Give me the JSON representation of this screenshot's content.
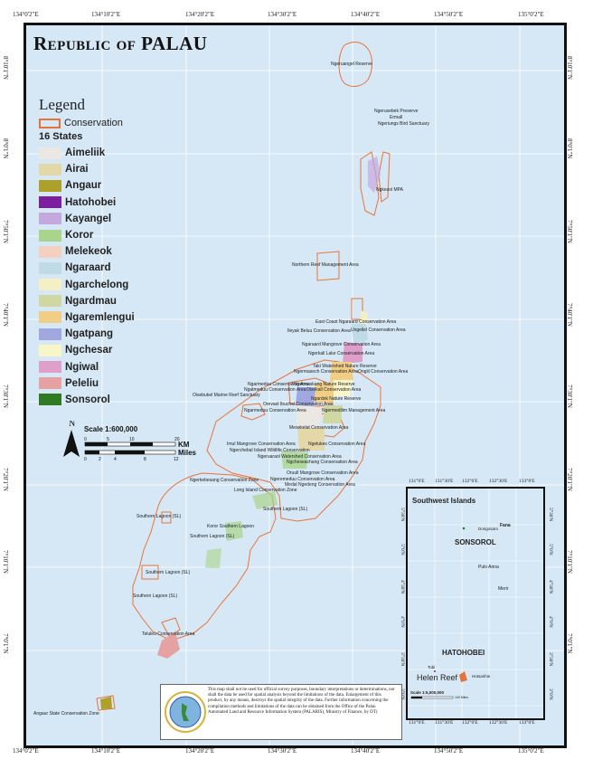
{
  "title": "Republic of PALAU",
  "grid": {
    "top_labels": [
      "134°0'2\"E",
      "134°10'2\"E",
      "134°20'2\"E",
      "134°30'2\"E",
      "134°40'2\"E",
      "134°50'2\"E",
      "135°0'2\"E"
    ],
    "bottom_labels": [
      "134°0'2\"E",
      "134°10'2\"E",
      "134°20'2\"E",
      "134°30'2\"E",
      "134°40'2\"E",
      "134°50'2\"E",
      "135°0'2\"E"
    ],
    "left_labels": [
      "8°10'1\"N",
      "8°0'1\"N",
      "7°50'1\"N",
      "7°40'1\"N",
      "7°30'1\"N",
      "7°20'1\"N",
      "7°10'1\"N",
      "7°0'1\"N"
    ],
    "right_labels": [
      "8°10'1\"N",
      "8°0'1\"N",
      "7°50'1\"N",
      "7°40'1\"N",
      "7°30'1\"N",
      "7°20'1\"N",
      "7°10'1\"N",
      "7°0'1\"N"
    ]
  },
  "legend": {
    "title": "Legend",
    "conservation_label": "Conservation",
    "conservation_color": "#e8733a",
    "states_heading": "16 States",
    "states": [
      {
        "name": "Aimeliik",
        "color": "#ebe7e3"
      },
      {
        "name": "Airai",
        "color": "#e5d8a8"
      },
      {
        "name": "Angaur",
        "color": "#aea12a"
      },
      {
        "name": "Hatohobei",
        "color": "#7a1fa0"
      },
      {
        "name": "Kayangel",
        "color": "#c4a9df"
      },
      {
        "name": "Koror",
        "color": "#a9d48b"
      },
      {
        "name": "Melekeok",
        "color": "#f5cfc0"
      },
      {
        "name": "Ngaraard",
        "color": "#bfdbe5"
      },
      {
        "name": "Ngarchelong",
        "color": "#f5efc6"
      },
      {
        "name": "Ngardmau",
        "color": "#cfd7a3"
      },
      {
        "name": "Ngaremlengui",
        "color": "#f1ce86"
      },
      {
        "name": "Ngatpang",
        "color": "#a0a8df"
      },
      {
        "name": "Ngchesar",
        "color": "#f8f6c9"
      },
      {
        "name": "Ngiwal",
        "color": "#de9fcb"
      },
      {
        "name": "Peleliu",
        "color": "#e6a2a2"
      },
      {
        "name": "Sonsorol",
        "color": "#2f7a23"
      }
    ]
  },
  "scale": {
    "north": "N",
    "ratio": "Scale  1:600,000",
    "km_ticks": [
      "0",
      "5",
      "10",
      "20"
    ],
    "km_unit": "KM",
    "mile_ticks": [
      "0",
      "2",
      "4",
      "8",
      "12"
    ],
    "mile_unit": "Miles"
  },
  "map_labels": [
    {
      "id": "ngeruangel",
      "text": "Ngeruangel Reserve"
    },
    {
      "id": "ngerusebek",
      "text": "Ngerusebek Preserve"
    },
    {
      "id": "ermall",
      "text": "Ermall"
    },
    {
      "id": "ngerlungs",
      "text": "Ngeriungs Bird Sanctuary"
    },
    {
      "id": "ngkesol",
      "text": "Ngkesol MPA"
    },
    {
      "id": "northern",
      "text": "Northern Reef Management Area"
    },
    {
      "id": "eastcoast",
      "text": "East Coast Ngaraard Conservation Area"
    },
    {
      "id": "ileyak",
      "text": "Ileyak  Beluu Conservation Area"
    },
    {
      "id": "ungelel",
      "text": "Ungellel Conservation Area"
    },
    {
      "id": "ngaraard_mangrove",
      "text": "Ngaraard Mangrove Conservation Area"
    },
    {
      "id": "ngerkall",
      "text": "Ngerkall Lake Conservation Area"
    },
    {
      "id": "taki",
      "text": "Taki Watershed Nature Reserve"
    },
    {
      "id": "ngermasech",
      "text": "Ngermasech Conservation Area"
    },
    {
      "id": "ongiil",
      "text": "Ongiil Conservation Area"
    },
    {
      "id": "ngarmeduu",
      "text": "Ngarmeduu Conservation Area"
    },
    {
      "id": "ngermeskang",
      "text": "Ngermeskang Nature Reserve"
    },
    {
      "id": "ngatmeduu2",
      "text": "Ngatmeduu Conservation Area"
    },
    {
      "id": "oisekall",
      "text": "Oisekall Conservation Area"
    },
    {
      "id": "oisebukel",
      "text": "Oisebukel Marine Reef Sanctuary"
    },
    {
      "id": "ngardok",
      "text": "Ngardok Nature Reserve"
    },
    {
      "id": "orevaol",
      "text": "Orevaol Ibuchel Conservation Area"
    },
    {
      "id": "ngaremedu",
      "text": "Ngarmeduu Conservation Area"
    },
    {
      "id": "ngermedilim",
      "text": "Ngermedilim Management Area"
    },
    {
      "id": "mesekelat",
      "text": "Mesekelat Conservation Area"
    },
    {
      "id": "imul",
      "text": "Imul Mangrove Conservation Area"
    },
    {
      "id": "ngelukes",
      "text": "Ngelukes Conservation Area"
    },
    {
      "id": "ngerchebal",
      "text": "Ngerchebal Island Wildlife Conservation"
    },
    {
      "id": "ngeruaraol",
      "text": "Ngeruaraol Watershed Conservation Area"
    },
    {
      "id": "ngeseachang",
      "text": "Ngcheseachang Conservation Area"
    },
    {
      "id": "oruull",
      "text": "Oruull Mangrove Conservation Area"
    },
    {
      "id": "ngerkebesang",
      "text": "Ngerkebesang Conservation Zone"
    },
    {
      "id": "ngerrmeduu",
      "text": "Ngeremeduu Conservation Area"
    },
    {
      "id": "medal",
      "text": "Medal Ngedeng Conservation Area"
    },
    {
      "id": "longisland",
      "text": "Long Island Conservation Zone"
    },
    {
      "id": "sl1",
      "text": "Southern Lagoon (SL)"
    },
    {
      "id": "sl2",
      "text": "Southern Lagoon (SL)"
    },
    {
      "id": "koror_sl",
      "text": "Koror Southern Lagoon"
    },
    {
      "id": "sl3",
      "text": "Southern Lagoon (SL)"
    },
    {
      "id": "sl4",
      "text": "Southern Lagoon (SL)"
    },
    {
      "id": "sl5",
      "text": "Southern Lagoon (SL)"
    },
    {
      "id": "teluleu",
      "text": "Teluleu Conservation Area"
    },
    {
      "id": "angaur",
      "text": "Angaur State Conservation Zone"
    }
  ],
  "inset": {
    "top_labels": [
      "131°0'E",
      "131°30'E",
      "132°0'E",
      "132°30'E",
      "133°0'E"
    ],
    "bottom_labels": [
      "131°0'E",
      "131°30'E",
      "132°0'E",
      "132°30'E",
      "133°0'E"
    ],
    "left_labels": [
      "5°30'N",
      "5°0'N",
      "4°30'N",
      "4°0'N",
      "3°30'N",
      "3°0'N"
    ],
    "right_labels": [
      "5°30'N",
      "5°0'N",
      "4°30'N",
      "4°0'N",
      "3°30'N",
      "3°0'N"
    ],
    "title": "Southwest Islands",
    "sonsorol": "SONSOROL",
    "hatohobei": "HATOHOBEI",
    "fana": "Fana",
    "dongosaro": "Dongosaro",
    "pulo_anna": "Pulo Anna",
    "merir": "Merir",
    "tobi": "Tobi",
    "helen_reef": "Helen Reef",
    "hotsarihie": "Hotsarihie",
    "scale": "Scale 1:5,000,000",
    "scale_unit": "100 Miles"
  },
  "disclaimer": "This map shall not be used for official survey purposes, boundary interpretations or determinations, nor shall the data be used for spatial analysis beyond the limitations of the data. Enlargement of this product, by any means, destroys the spatial integrity of the data. Further information concerning the compilation methods and limitations of the data can be obtained from the Office of the Palau Automated Land and Resource Information System (PALARIS), Ministry of Finance, by DT)"
}
